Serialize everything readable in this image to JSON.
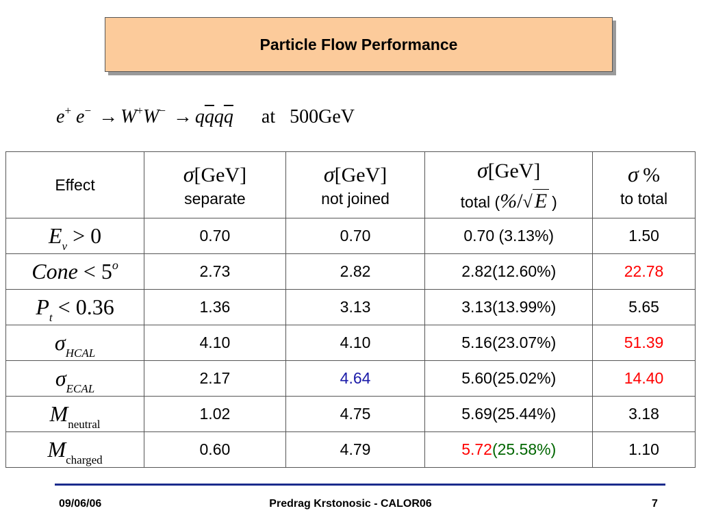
{
  "title": "Particle Flow Performance",
  "process": {
    "e1": "e",
    "e1_sup": "+",
    "e2": "e",
    "e2_sup": "−",
    "arrow1": "→",
    "w1": "W",
    "w1_sup": "+",
    "w2": "W",
    "w2_sup": "−",
    "arrow2": "→",
    "q1": "q",
    "q1bar": "q",
    "q2": "q",
    "q2bar": "q",
    "at": "at",
    "energy": "500GeV"
  },
  "table": {
    "header": {
      "effect": "Effect",
      "sigma_symbol": "σ",
      "gev_unit": "[GeV]",
      "col1_sub": "separate",
      "col2_sub": "not joined",
      "col3_sub_prefix": "total (",
      "col3_sub_pct": "%",
      "col3_sub_slash": "/",
      "col3_sub_E": "E",
      "col3_sub_suffix": ")",
      "col4_pct": "%",
      "col4_sub": "to total"
    },
    "rows": [
      {
        "effect": {
          "main": "E",
          "sub": "ν",
          "rest": " > 0"
        },
        "separate": "0.70",
        "not_joined": "0.70",
        "total": "0.70 (3.13%)",
        "to_total": "1.50"
      },
      {
        "effect": {
          "main": "Cone",
          "rest": " < 5",
          "sup": "o"
        },
        "separate": "2.73",
        "not_joined": "2.82",
        "total": "2.82(12.60%)",
        "to_total": "22.78"
      },
      {
        "effect": {
          "main": "P",
          "sub": "t",
          "rest": " < 0.36"
        },
        "separate": "1.36",
        "not_joined": "3.13",
        "total": "3.13(13.99%)",
        "to_total": "5.65"
      },
      {
        "effect": {
          "main": "σ",
          "sub": "HCAL"
        },
        "separate": "4.10",
        "not_joined": "4.10",
        "total": "5.16(23.07%)",
        "to_total": "51.39"
      },
      {
        "effect": {
          "main": "σ",
          "sub": "ECAL"
        },
        "separate": "2.17",
        "not_joined": "4.64",
        "total": "5.60(25.02%)",
        "to_total": "14.40"
      },
      {
        "effect": {
          "main": "M",
          "sub": "neutral"
        },
        "separate": "1.02",
        "not_joined": "4.75",
        "total": "5.69(25.44%)",
        "to_total": "3.18"
      },
      {
        "effect": {
          "main": "M",
          "sub": "charged"
        },
        "separate": "0.60",
        "not_joined": "4.79",
        "total_a": "5.72",
        "total_b": "(25.58%)",
        "to_total": "1.10"
      }
    ]
  },
  "colors": {
    "title_bg": "#fccb9b",
    "highlight_red": "#ff0000",
    "highlight_blue": "#1a1aa8",
    "highlight_green": "#006600",
    "footer_line": "#1a2b8c"
  },
  "footer": {
    "date": "09/06/06",
    "center": "Predrag Krstonosic -  CALOR06",
    "page": "7"
  }
}
